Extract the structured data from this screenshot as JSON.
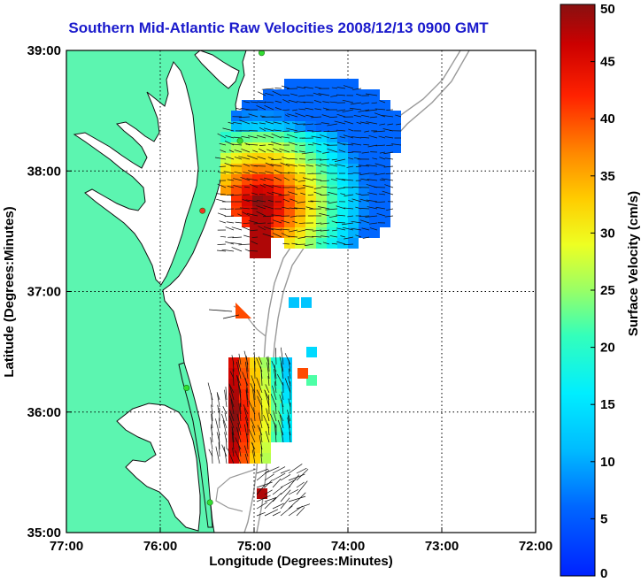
{
  "title": "Southern Mid-Atlantic Raw Velocities 2008/12/13 0900 GMT",
  "colors": {
    "land": "#5cf5b0",
    "water": "#ffffff",
    "coastline": "#111111",
    "bathymetry": "#999999",
    "station": "#33dd33",
    "grid": "#000000"
  },
  "map": {
    "xlabel": "Longitude (Degrees:Minutes)",
    "ylabel": "Latitude (Degrees:Minutes)",
    "lon_range": [
      -77,
      -72
    ],
    "lat_range": [
      35,
      39
    ],
    "x_ticks": [
      {
        "value": -77,
        "label": "77:00"
      },
      {
        "value": -76,
        "label": "76:00"
      },
      {
        "value": -75,
        "label": "75:00"
      },
      {
        "value": -74,
        "label": "74:00"
      },
      {
        "value": -73,
        "label": "73:00"
      },
      {
        "value": -72,
        "label": "72:00"
      }
    ],
    "y_ticks": [
      {
        "value": 35,
        "label": "35:00"
      },
      {
        "value": 36,
        "label": "36:00"
      },
      {
        "value": 37,
        "label": "37:00"
      },
      {
        "value": 38,
        "label": "38:00"
      },
      {
        "value": 39,
        "label": "39:00"
      }
    ],
    "grid": "dotted"
  },
  "colorbar": {
    "label": "Surface Velocity (cm/s)",
    "min": 0,
    "max": 50,
    "colormap": "jet",
    "ticks": [
      {
        "value": 0,
        "label": "0"
      },
      {
        "value": 5,
        "label": "5"
      },
      {
        "value": 10,
        "label": "10"
      },
      {
        "value": 15,
        "label": "15"
      },
      {
        "value": 20,
        "label": "20"
      },
      {
        "value": 25,
        "label": "25"
      },
      {
        "value": 30,
        "label": "30"
      },
      {
        "value": 35,
        "label": "35"
      },
      {
        "value": 40,
        "label": "40"
      },
      {
        "value": 45,
        "label": "45"
      },
      {
        "value": 50,
        "label": "50"
      }
    ]
  },
  "stations": [
    {
      "lon": -74.92,
      "lat": 38.98,
      "color": "#33dd33"
    },
    {
      "lon": -75.15,
      "lat": 38.25,
      "color": "#33dd33"
    },
    {
      "lon": -75.55,
      "lat": 37.67,
      "color": "#ee3322"
    },
    {
      "lon": -75.72,
      "lat": 36.2,
      "color": "#33dd33"
    },
    {
      "lon": -75.47,
      "lat": 35.25,
      "color": "#33dd33"
    }
  ],
  "velocity_regions": [
    {
      "name": "north",
      "speed_field": "gradient-west-high"
    },
    {
      "name": "south",
      "speed_field": "gradient-west-high"
    }
  ]
}
